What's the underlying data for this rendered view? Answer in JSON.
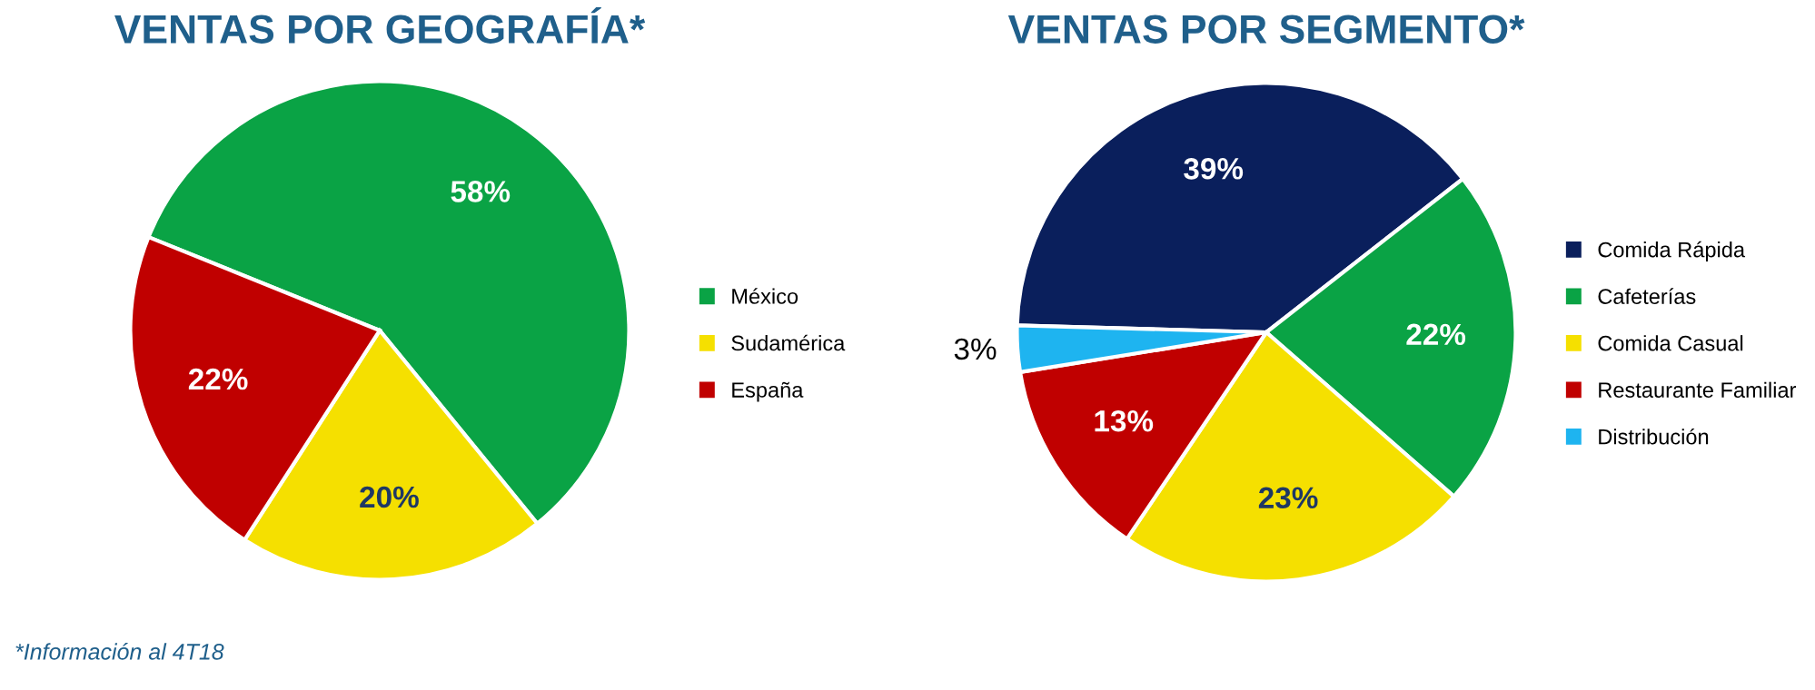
{
  "chart_data": [
    {
      "type": "pie",
      "title": "VENTAS POR GEOGRAFÍA*",
      "categories": [
        "México",
        "Sudamérica",
        "España"
      ],
      "values": [
        58,
        20,
        22
      ],
      "colors": [
        "#0aa345",
        "#f5e000",
        "#c00000"
      ],
      "value_labels": [
        "58%",
        "20%",
        "22%"
      ],
      "legend": "right",
      "annotations": [
        "*Información al 4T18"
      ]
    },
    {
      "type": "pie",
      "title": "VENTAS POR SEGMENTO*",
      "categories": [
        "Comida Rápida",
        "Cafeterías",
        "Comida Casual",
        "Restaurante Familiar",
        "Distribución"
      ],
      "values": [
        39,
        22,
        23,
        13,
        3
      ],
      "colors": [
        "#0a1f5c",
        "#0aa345",
        "#f5e000",
        "#c00000",
        "#1eb4f0"
      ],
      "value_labels": [
        "39%",
        "22%",
        "23%",
        "13%",
        "3%"
      ],
      "legend": "right"
    }
  ]
}
